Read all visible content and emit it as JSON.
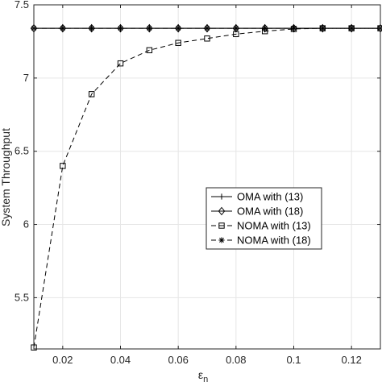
{
  "chart_data": {
    "type": "line",
    "xlabel": "ε",
    "xlabel_sub": "n",
    "ylabel": "System Throughput",
    "xlim": [
      0.01,
      0.13
    ],
    "ylim": [
      5.15,
      7.5
    ],
    "x": [
      0.01,
      0.02,
      0.03,
      0.04,
      0.05,
      0.06,
      0.07,
      0.08,
      0.09,
      0.1,
      0.11,
      0.12,
      0.13
    ],
    "x_ticks": [
      0.02,
      0.04,
      0.06,
      0.08,
      0.1,
      0.12
    ],
    "x_tick_labels": [
      "0.02",
      "0.04",
      "0.06",
      "0.08",
      "0.1",
      "0.12"
    ],
    "y_ticks": [
      5.5,
      6,
      6.5,
      7,
      7.5
    ],
    "y_tick_labels": [
      "5.5",
      "6",
      "6.5",
      "7",
      "7.5"
    ],
    "grid": true,
    "legend_position": "center-right",
    "series": [
      {
        "name": "OMA with (13)",
        "marker": "plus",
        "line": "solid",
        "values": [
          7.34,
          7.34,
          7.34,
          7.34,
          7.34,
          7.34,
          7.34,
          7.34,
          7.34,
          7.34,
          7.34,
          7.34,
          7.34
        ]
      },
      {
        "name": "OMA with (18)",
        "marker": "diamond",
        "line": "solid",
        "values": [
          7.34,
          7.34,
          7.34,
          7.34,
          7.34,
          7.34,
          7.34,
          7.34,
          7.34,
          7.34,
          7.34,
          7.34,
          7.34
        ]
      },
      {
        "name": "NOMA with (13)",
        "marker": "square",
        "line": "dashed",
        "values": [
          5.16,
          6.4,
          6.89,
          7.1,
          7.19,
          7.24,
          7.27,
          7.3,
          7.32,
          7.335,
          7.34,
          7.34,
          7.34
        ]
      },
      {
        "name": "NOMA with (18)",
        "marker": "asterisk",
        "line": "dashed",
        "values": [
          7.34,
          7.34,
          7.34,
          7.34,
          7.34,
          7.34,
          7.34,
          7.34,
          7.34,
          7.34,
          7.34,
          7.34,
          7.34
        ]
      }
    ]
  }
}
